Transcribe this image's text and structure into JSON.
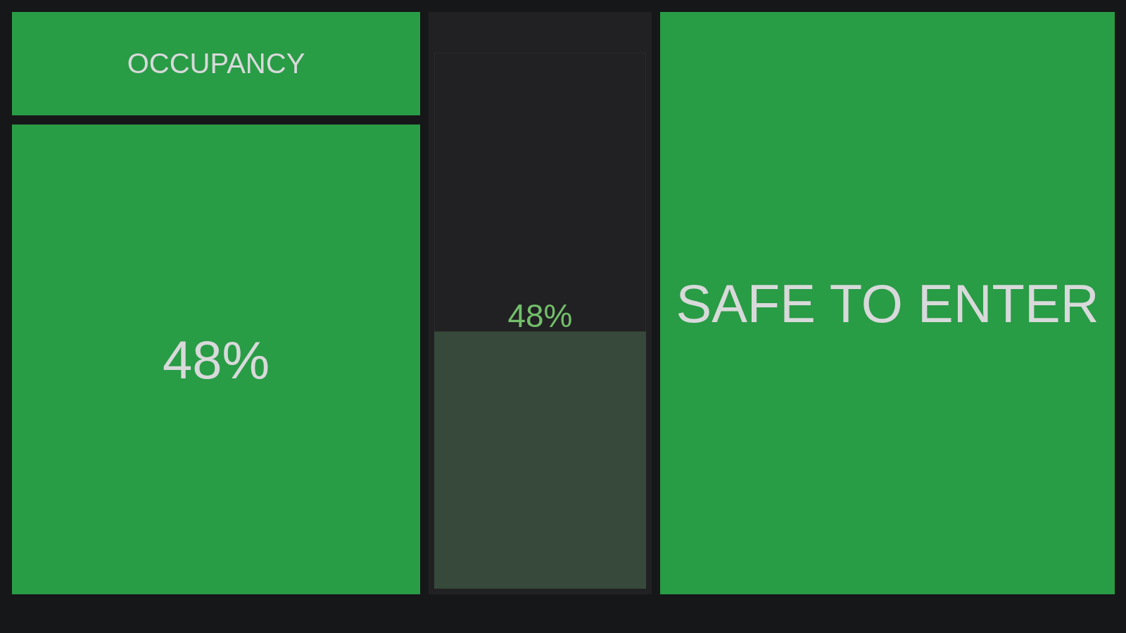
{
  "chart_data": [
    {
      "type": "other",
      "title": "OCCUPANCY",
      "annotations": [
        "48%"
      ],
      "color": "#299c46"
    },
    {
      "type": "bar",
      "categories": [
        null
      ],
      "values": [
        48
      ],
      "value_labels": [
        "48%"
      ],
      "ylim": [
        0,
        100
      ],
      "color": "#37493a",
      "tick_labels": false
    },
    {
      "type": "other",
      "title": "SAFE TO ENTER",
      "color": "#299c46"
    }
  ]
}
